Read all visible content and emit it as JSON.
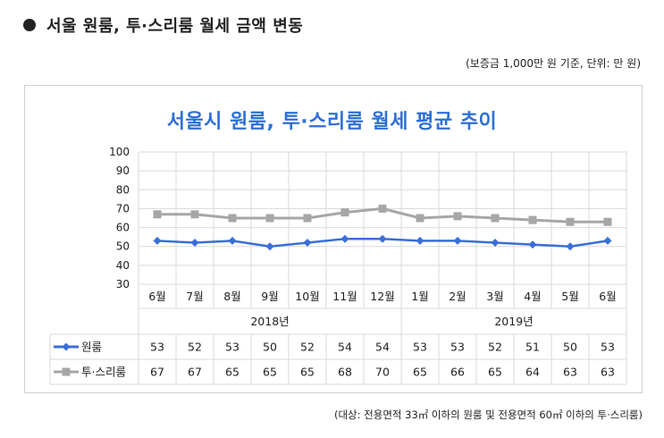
{
  "heading": "서울 원룸, 투·스리룸 월세 금액 변동",
  "unit_note": "(보증금 1,000만 원 기준, 단위: 만 원)",
  "footnote": "(대상: 전용면적 33㎡ 이하의 원룸 및 전용면적 60㎡ 이하의 투·스리룸)",
  "chart_data": {
    "type": "line",
    "title": "서울시 원룸, 투·스리룸 월세 평균 추이",
    "categories": [
      "6월",
      "7월",
      "8월",
      "9월",
      "10월",
      "11월",
      "12월",
      "1월",
      "2월",
      "3월",
      "4월",
      "5월",
      "6월"
    ],
    "year_groups": [
      {
        "label": "2018년",
        "count": 7
      },
      {
        "label": "2019년",
        "count": 6
      }
    ],
    "y_ticks": [
      "100",
      "90",
      "80",
      "70",
      "60",
      "50",
      "40",
      "30"
    ],
    "ylim": [
      30,
      100
    ],
    "grid": true,
    "legend": "data-table",
    "series": [
      {
        "name": "원룸",
        "color": "#3a6fd8",
        "marker": "diamond",
        "values": [
          53,
          52,
          53,
          50,
          52,
          54,
          54,
          53,
          53,
          52,
          51,
          50,
          53
        ]
      },
      {
        "name": "투·스리룸",
        "color": "#a6a6a6",
        "marker": "square",
        "values": [
          67,
          67,
          65,
          65,
          65,
          68,
          70,
          65,
          66,
          65,
          64,
          63,
          63
        ]
      }
    ]
  }
}
